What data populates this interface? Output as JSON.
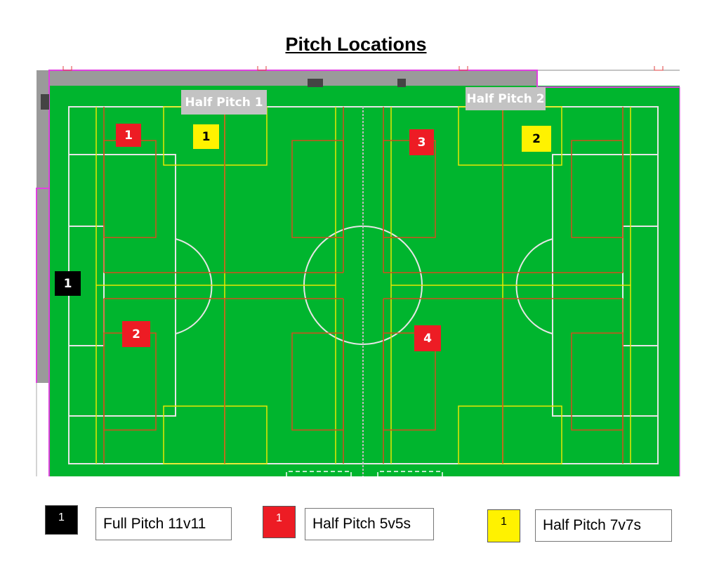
{
  "title": "Pitch Locations",
  "colors": {
    "grass": "#00b52e",
    "red": "#ed1c24",
    "yellow": "#fff200",
    "black": "#000000",
    "surround": "#9a9a9a",
    "boundary": "#e040e0"
  },
  "labels": {
    "half_pitch_1": "Half Pitch 1",
    "half_pitch_2": "Half Pitch 2"
  },
  "markers": {
    "full": [
      "1"
    ],
    "red": [
      "1",
      "2",
      "3",
      "4"
    ],
    "yellow": [
      "1",
      "2"
    ]
  },
  "legend": [
    {
      "swatch": "1",
      "color": "black",
      "label": "Full Pitch 11v11"
    },
    {
      "swatch": "1",
      "color": "red",
      "label": "Half Pitch 5v5s"
    },
    {
      "swatch": "1",
      "color": "yellow",
      "label": "Half Pitch 7v7s"
    }
  ]
}
